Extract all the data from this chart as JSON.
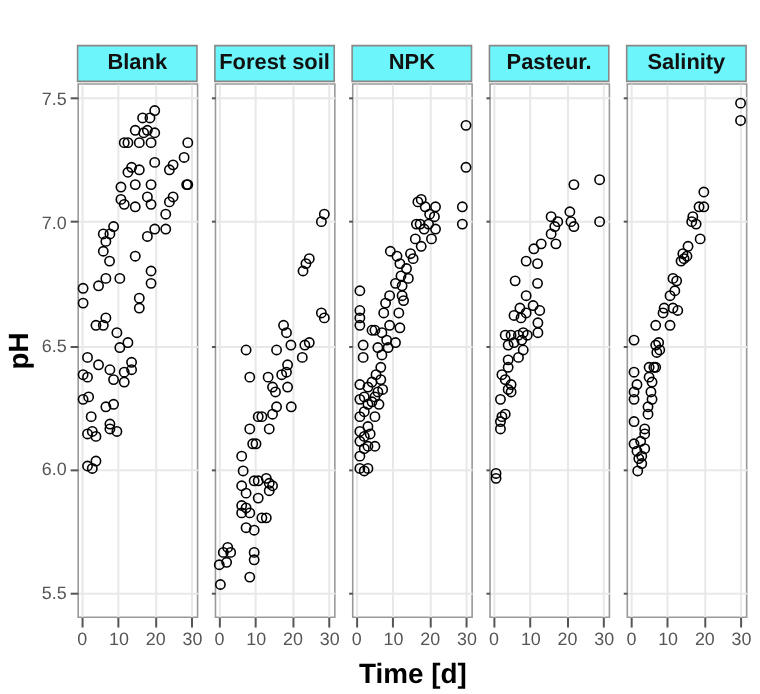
{
  "chart_data": [
    {
      "type": "scatter",
      "title": "Blank",
      "ylabel": "pH",
      "xlim": [
        -1,
        31.5
      ],
      "xticks": [
        0,
        10,
        20,
        30
      ],
      "ylim": [
        5.4,
        7.56
      ],
      "yticks": [
        5.5,
        {
          "value": 6,
          "label": "6.0"
        },
        6.5,
        {
          "value": 7,
          "label": "7.0"
        },
        7.5
      ],
      "grid": true,
      "marker": "circle",
      "series": [
        {
          "color": "#000000",
          "x": [
            0.5,
            0.5,
            0.5,
            0.5,
            1.7,
            1.7,
            2,
            1.7,
            1.7,
            3,
            4,
            2.7,
            3,
            4,
            4,
            6,
            4.7,
            4.7,
            6,
            6,
            6.7,
            6.7,
            6.7,
            6.7,
            7.8,
            7.7,
            7.8,
            7.8,
            7.8,
            8.8,
            8.8,
            8.8,
            9.7,
            9.7,
            10.5,
            10.5,
            10.8,
            10.8,
            11.7,
            11.7,
            11.7,
            11.7,
            12.7,
            12.7,
            12.7,
            13.7,
            13.7,
            13.7,
            14.7,
            14.7,
            14.7,
            14.7,
            15.8,
            15.8,
            15.8,
            15.8,
            16.7,
            17,
            18,
            18,
            18,
            18.7,
            19,
            19,
            19,
            19,
            19,
            20,
            20,
            20,
            20,
            23,
            23,
            24,
            24,
            25,
            25,
            28,
            28.7,
            29,
            29
          ],
          "values": [
            6.73,
            6.67,
            6.38,
            6.28,
            6.45,
            6.37,
            6.29,
            6.14,
            6.01,
            6.0,
            6.03,
            6.21,
            6.15,
            6.13,
            6.58,
            6.58,
            6.42,
            6.74,
            6.95,
            6.88,
            6.92,
            6.77,
            6.61,
            6.25,
            6.95,
            6.84,
            6.4,
            6.18,
            6.16,
            6.98,
            6.26,
            6.36,
            6.55,
            6.15,
            6.77,
            6.49,
            7.14,
            7.09,
            7.32,
            7.07,
            6.39,
            6.35,
            7.32,
            7.2,
            6.51,
            7.22,
            6.4,
            6.43,
            7.37,
            7.15,
            6.86,
            7.06,
            7.32,
            7.21,
            6.69,
            6.65,
            7.42,
            7.36,
            7.37,
            7.1,
            6.94,
            7.42,
            7.32,
            7.15,
            7.07,
            6.8,
            6.75,
            7.45,
            7.36,
            7.24,
            6.97,
            6.97,
            7.03,
            7.08,
            7.21,
            7.1,
            7.23,
            7.26,
            7.15,
            7.32,
            7.15
          ]
        }
      ]
    },
    {
      "type": "scatter",
      "title": "Forest soil",
      "xlim": [
        -1,
        31.5
      ],
      "xticks": [
        0,
        10,
        20,
        30
      ],
      "ylim": [
        5.4,
        7.56
      ],
      "yticks": [
        5.5,
        6,
        6.5,
        7,
        7.5
      ],
      "grid": true,
      "marker": "circle",
      "tick_labels": "x",
      "series": [
        {
          "color": "#000000",
          "x": [
            0.5,
            0.2,
            1.3,
            2.5,
            3.3,
            2.2,
            6.3,
            6.7,
            6.3,
            7.5,
            6.3,
            7.5,
            6.3,
            7.5,
            8.5,
            9.7,
            8.5,
            9.7,
            9.7,
            7.5,
            8.5,
            8.5,
            9.3,
            10.2,
            9.7,
            10.8,
            10.8,
            11.8,
            10.8,
            11.8,
            13,
            13,
            13.8,
            13.8,
            14.7,
            13.8,
            14.7,
            13.5,
            14.7,
            15.5,
            15.8,
            15.8,
            17.2,
            17.7,
            18.5,
            18.8,
            18.5,
            18.8,
            19.7,
            19.8,
            22.8,
            23.5,
            24.7,
            23,
            23.8,
            24.7,
            28,
            28.8,
            28,
            28.8
          ],
          "values": [
            5.53,
            5.61,
            5.66,
            5.68,
            5.66,
            5.62,
            6.05,
            5.99,
            5.93,
            5.9,
            5.85,
            5.84,
            5.82,
            5.76,
            5.82,
            5.75,
            5.56,
            5.66,
            5.63,
            6.48,
            6.37,
            6.16,
            6.1,
            6.1,
            5.95,
            5.95,
            6.21,
            6.21,
            5.88,
            5.8,
            5.8,
            5.96,
            5.94,
            5.91,
            5.93,
            6.16,
            6.22,
            6.37,
            6.33,
            6.31,
            6.25,
            6.48,
            6.38,
            6.58,
            6.55,
            6.42,
            6.39,
            6.33,
            6.5,
            6.25,
            6.45,
            6.5,
            6.51,
            6.8,
            6.83,
            6.85,
            7.0,
            7.03,
            6.63,
            6.61
          ]
        }
      ]
    },
    {
      "type": "scatter",
      "title": "NPK",
      "xlabel": "Time [d]",
      "xlim": [
        -1,
        31.5
      ],
      "xticks": [
        0,
        10,
        20,
        30
      ],
      "ylim": [
        5.4,
        7.56
      ],
      "yticks": [
        5.5,
        6,
        6.5,
        7,
        7.5
      ],
      "grid": true,
      "marker": "circle",
      "tick_labels": "x",
      "series": [
        {
          "color": "#000000",
          "x": [
            1.1,
            1.1,
            1.1,
            1.1,
            1.1,
            1.1,
            1.1,
            1.1,
            1.1,
            1.1,
            1.1,
            2,
            2,
            2.3,
            2.3,
            2.3,
            2.3,
            2.3,
            3.3,
            3.3,
            3.3,
            3.3,
            3.3,
            3.9,
            4.4,
            4.4,
            4.4,
            5.2,
            5.2,
            5.2,
            5.2,
            5.5,
            6,
            6,
            6.3,
            6.8,
            6.8,
            7.1,
            7.1,
            7.3,
            7.6,
            8.1,
            8.4,
            8.8,
            9.2,
            9.2,
            9.4,
            10.8,
            10.8,
            11.2,
            11.7,
            12,
            12,
            12.3,
            12.6,
            13,
            12.6,
            13.8,
            14.3,
            14.9,
            15.6,
            16.2,
            16.5,
            16.9,
            17.5,
            17.8,
            17.8,
            18.6,
            18.9,
            19.8,
            20.1,
            20.6,
            21.4,
            21.7,
            21.7,
            29,
            29,
            30,
            30
          ],
          "values": [
            6.72,
            6.64,
            6.61,
            6.58,
            6.34,
            6.28,
            6.21,
            6.15,
            6.11,
            6.05,
            6.0,
            6.5,
            6.45,
            6.29,
            6.23,
            6.13,
            6.08,
            5.99,
            6.0,
            6.09,
            6.17,
            6.26,
            6.33,
            6.14,
            6.27,
            6.35,
            6.56,
            6.09,
            6.21,
            6.29,
            6.56,
            6.38,
            6.49,
            6.31,
            6.26,
            6.41,
            6.36,
            6.46,
            6.55,
            6.32,
            6.63,
            6.67,
            6.52,
            6.49,
            6.58,
            6.7,
            6.88,
            6.51,
            6.75,
            6.86,
            6.63,
            6.57,
            6.83,
            6.78,
            6.7,
            6.68,
            6.74,
            6.81,
            6.77,
            6.87,
            6.85,
            6.93,
            6.99,
            7.08,
            6.99,
            7.09,
            6.9,
            6.97,
            7.06,
            6.99,
            7.03,
            6.93,
            7.02,
            7.06,
            6.97,
            7.06,
            6.99,
            7.39,
            7.22
          ]
        }
      ]
    },
    {
      "type": "scatter",
      "title": "Pasteur.",
      "xlim": [
        -1,
        31.5
      ],
      "xticks": [
        0,
        10,
        20,
        30
      ],
      "ylim": [
        5.4,
        7.56
      ],
      "yticks": [
        5.5,
        6,
        6.5,
        7,
        7.5
      ],
      "grid": true,
      "marker": "circle",
      "tick_labels": "x",
      "series": [
        {
          "color": "#000000",
          "x": [
            0.8,
            0.8,
            2,
            2,
            2.4,
            3.3,
            2,
            2.4,
            3.3,
            4.1,
            4.9,
            4.9,
            4.1,
            4.1,
            3.3,
            4.1,
            4.9,
            5.7,
            5.7,
            6,
            6.9,
            6.9,
            7.3,
            7.6,
            7.8,
            8.2,
            8.2,
            9,
            9,
            9,
            9.3,
            10.9,
            11.1,
            12.1,
            12.1,
            12.2,
            12.2,
            13.1,
            12.7,
            15.8,
            15.8,
            16.8,
            17.1,
            17.6,
            20.9,
            21.2,
            22,
            22,
            29,
            29
          ],
          "values": [
            5.98,
            5.96,
            6.19,
            6.16,
            6.21,
            6.22,
            6.28,
            6.38,
            6.36,
            6.32,
            6.34,
            6.31,
            6.41,
            6.44,
            6.54,
            6.5,
            6.54,
            6.51,
            6.62,
            6.76,
            6.54,
            6.45,
            6.65,
            6.61,
            6.52,
            6.55,
            6.48,
            6.84,
            6.7,
            6.63,
            6.54,
            6.66,
            6.89,
            6.83,
            6.75,
            6.59,
            6.55,
            6.91,
            6.64,
            7.02,
            6.95,
            6.98,
            6.91,
            7.0,
            7.04,
            7.0,
            6.98,
            7.15,
            7.17,
            7.0
          ]
        }
      ]
    },
    {
      "type": "scatter",
      "title": "Salinity",
      "xlim": [
        -1,
        31.5
      ],
      "xticks": [
        0,
        10,
        20,
        30
      ],
      "ylim": [
        5.4,
        7.56
      ],
      "yticks": [
        5.5,
        6,
        6.5,
        7,
        7.5
      ],
      "grid": true,
      "marker": "circle",
      "tick_labels": "x",
      "series": [
        {
          "color": "#000000",
          "x": [
            1,
            1,
            1,
            1,
            1,
            1.8,
            1,
            1.8,
            2.3,
            2,
            2.8,
            3.1,
            3.1,
            3.9,
            3.9,
            3.9,
            4.8,
            4.8,
            5.1,
            5.1,
            5.6,
            5.9,
            5.9,
            6.4,
            6.9,
            6.9,
            6.9,
            7.2,
            7.7,
            8,
            8.9,
            9.2,
            10.8,
            10.8,
            11.6,
            11.6,
            12.1,
            12.6,
            12.9,
            13.8,
            14.3,
            14.6,
            15.4,
            15.7,
            16.7,
            17,
            17.9,
            18.7,
            19,
            20,
            20,
            30,
            30
          ],
          "values": [
            6.52,
            6.39,
            6.31,
            6.28,
            6.19,
            6.34,
            6.1,
            6.07,
            6.04,
            5.99,
            6.11,
            6.05,
            6.02,
            6.16,
            6.14,
            6.08,
            6.25,
            6.22,
            6.37,
            6.41,
            6.31,
            6.35,
            6.28,
            6.41,
            6.41,
            6.5,
            6.58,
            6.47,
            6.51,
            6.48,
            6.63,
            6.65,
            6.58,
            6.7,
            6.65,
            6.77,
            6.72,
            6.76,
            6.64,
            6.84,
            6.87,
            6.85,
            6.86,
            6.9,
            7.0,
            7.02,
            6.99,
            7.06,
            6.93,
            7.12,
            7.06,
            7.48,
            7.41
          ]
        }
      ]
    }
  ]
}
